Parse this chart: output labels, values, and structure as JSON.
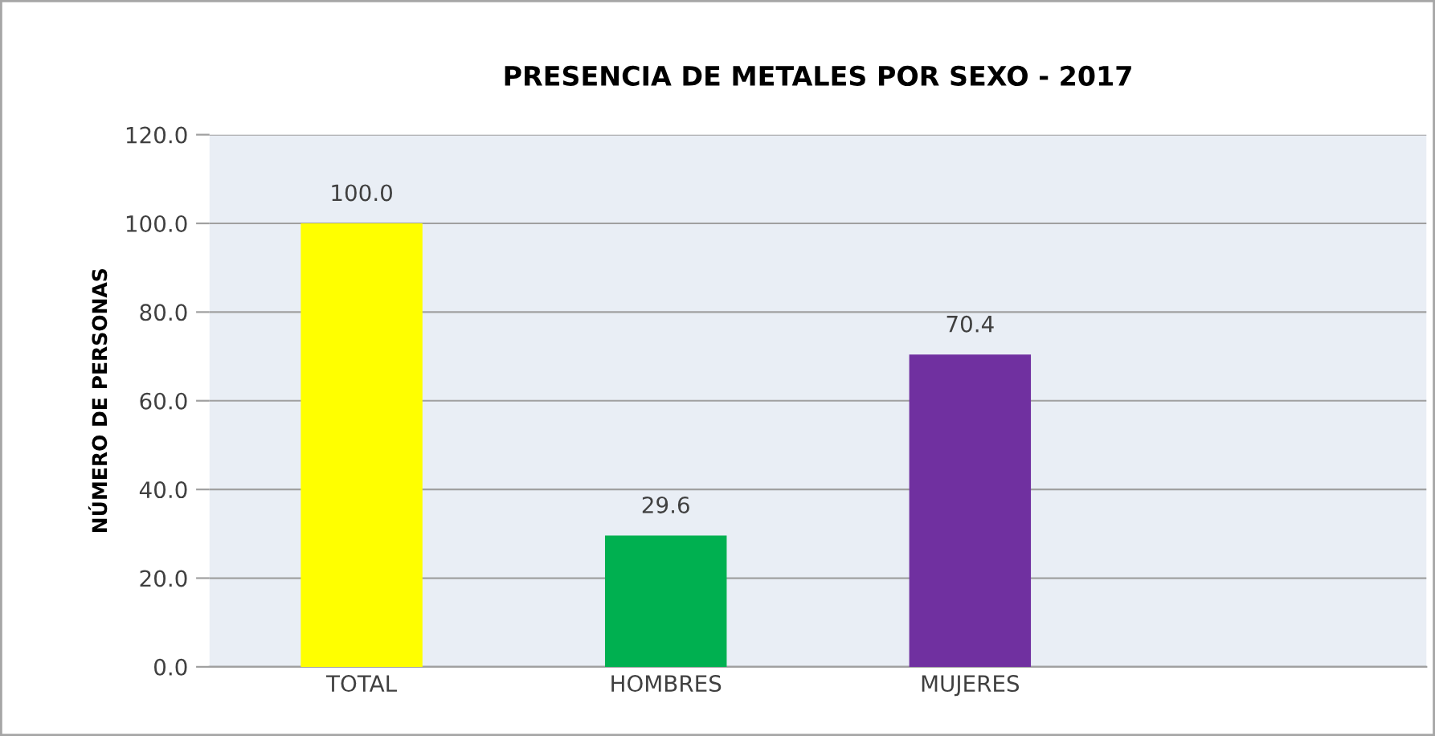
{
  "chart_data": {
    "type": "bar",
    "title": "PRESENCIA DE METALES POR SEXO - 2017",
    "ylabel": "NÚMERO DE PERSONAS",
    "categories": [
      "TOTAL",
      "HOMBRES",
      "MUJERES",
      null
    ],
    "values": [
      100.0,
      29.6,
      70.4,
      null
    ],
    "colors": [
      "#ffff00",
      "#00b050",
      "#7030a0",
      "#7030a0"
    ],
    "value_labels": [
      "100.0",
      "29.6",
      "70.4",
      null
    ],
    "ylim": [
      0,
      120
    ],
    "yticks": [
      {
        "value": 0,
        "label": "0.0"
      },
      {
        "value": 20,
        "label": "20.0"
      },
      {
        "value": 40,
        "label": "40.0"
      },
      {
        "value": 60,
        "label": "60.0"
      },
      {
        "value": 80,
        "label": "80.0"
      },
      {
        "value": 100,
        "label": "100.0"
      },
      {
        "value": 120,
        "label": "120.0"
      }
    ],
    "grid": "y",
    "legend": false
  }
}
